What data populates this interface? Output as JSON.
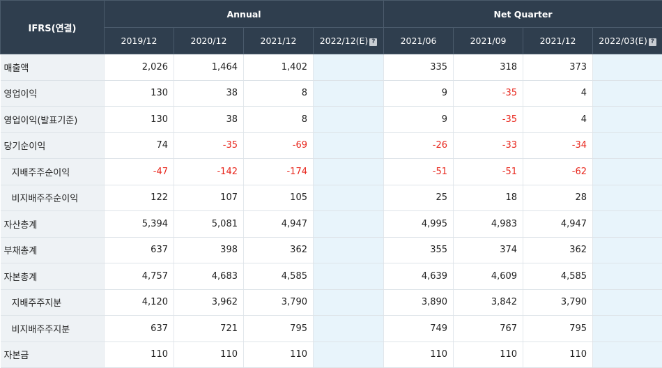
{
  "header": {
    "corner": "IFRS(연결)",
    "annual_label": "Annual",
    "quarter_label": "Net Quarter",
    "annual_periods": [
      "2019/12",
      "2020/12",
      "2021/12",
      "2022/12(E)"
    ],
    "quarter_periods": [
      "2021/06",
      "2021/09",
      "2021/12",
      "2022/03(E)"
    ],
    "help_glyph": "?"
  },
  "rows": [
    {
      "label": "매출액",
      "sub": false,
      "annual": [
        "2,026",
        "1,464",
        "1,402",
        ""
      ],
      "quarter": [
        "335",
        "318",
        "373",
        ""
      ]
    },
    {
      "label": "영업이익",
      "sub": false,
      "annual": [
        "130",
        "38",
        "8",
        ""
      ],
      "quarter": [
        "9",
        "-35",
        "4",
        ""
      ]
    },
    {
      "label": "영업이익(발표기준)",
      "sub": false,
      "annual": [
        "130",
        "38",
        "8",
        ""
      ],
      "quarter": [
        "9",
        "-35",
        "4",
        ""
      ]
    },
    {
      "label": "당기순이익",
      "sub": false,
      "annual": [
        "74",
        "-35",
        "-69",
        ""
      ],
      "quarter": [
        "-26",
        "-33",
        "-34",
        ""
      ]
    },
    {
      "label": "지배주주순이익",
      "sub": true,
      "annual": [
        "-47",
        "-142",
        "-174",
        ""
      ],
      "quarter": [
        "-51",
        "-51",
        "-62",
        ""
      ]
    },
    {
      "label": "비지배주주순이익",
      "sub": true,
      "annual": [
        "122",
        "107",
        "105",
        ""
      ],
      "quarter": [
        "25",
        "18",
        "28",
        ""
      ]
    },
    {
      "label": "자산총계",
      "sub": false,
      "annual": [
        "5,394",
        "5,081",
        "4,947",
        ""
      ],
      "quarter": [
        "4,995",
        "4,983",
        "4,947",
        ""
      ]
    },
    {
      "label": "부채총계",
      "sub": false,
      "annual": [
        "637",
        "398",
        "362",
        ""
      ],
      "quarter": [
        "355",
        "374",
        "362",
        ""
      ]
    },
    {
      "label": "자본총계",
      "sub": false,
      "annual": [
        "4,757",
        "4,683",
        "4,585",
        ""
      ],
      "quarter": [
        "4,639",
        "4,609",
        "4,585",
        ""
      ]
    },
    {
      "label": "지배주주지분",
      "sub": true,
      "annual": [
        "4,120",
        "3,962",
        "3,790",
        ""
      ],
      "quarter": [
        "3,890",
        "3,842",
        "3,790",
        ""
      ]
    },
    {
      "label": "비지배주주지분",
      "sub": true,
      "annual": [
        "637",
        "721",
        "795",
        ""
      ],
      "quarter": [
        "749",
        "767",
        "795",
        ""
      ]
    },
    {
      "label": "자본금",
      "sub": false,
      "annual": [
        "110",
        "110",
        "110",
        ""
      ],
      "quarter": [
        "110",
        "110",
        "110",
        ""
      ]
    }
  ],
  "colors": {
    "header_bg": "#2f3e4e",
    "label_bg": "#eef2f5",
    "estimate_bg": "#e8f4fb",
    "negative": "#e8261c"
  }
}
